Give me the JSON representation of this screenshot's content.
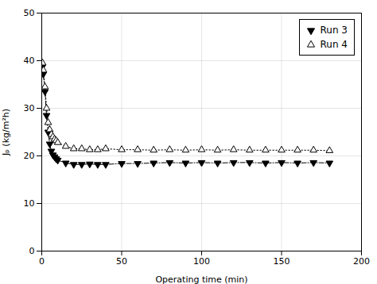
{
  "chart_data": {
    "type": "line",
    "xlabel": "Operating time (min)",
    "ylabel": "Jₚ (kg/m²h)",
    "x": [
      0.5,
      1,
      2,
      3,
      4,
      5,
      6,
      7,
      8,
      9,
      10,
      15,
      20,
      25,
      30,
      35,
      40,
      50,
      60,
      70,
      80,
      90,
      100,
      110,
      120,
      130,
      140,
      150,
      160,
      170,
      180
    ],
    "series": [
      {
        "name": "Run 3",
        "color": "#000000",
        "marker": "triangle-down",
        "line_style": "dashdot",
        "values": [
          38.8,
          37.2,
          33.5,
          28.5,
          25.0,
          22.5,
          21.0,
          20.2,
          19.8,
          19.4,
          19.1,
          18.5,
          18.2,
          18.2,
          18.3,
          18.2,
          18.2,
          18.4,
          18.4,
          18.5,
          18.6,
          18.5,
          18.6,
          18.5,
          18.6,
          18.6,
          18.5,
          18.6,
          18.5,
          18.6,
          18.5
        ]
      },
      {
        "name": "Run 4",
        "color": "#000000",
        "marker": "triangle-up-open",
        "line_style": "dotted",
        "values": [
          39.5,
          38.0,
          34.5,
          30.0,
          27.0,
          25.5,
          24.5,
          24.0,
          23.5,
          23.2,
          22.8,
          22.0,
          21.5,
          21.5,
          21.3,
          21.3,
          21.5,
          21.3,
          21.3,
          21.2,
          21.3,
          21.2,
          21.3,
          21.2,
          21.3,
          21.2,
          21.2,
          21.2,
          21.2,
          21.2,
          21.1
        ]
      }
    ],
    "xlim": [
      0,
      200
    ],
    "ylim": [
      0,
      50
    ],
    "xticks": [
      0,
      50,
      100,
      150,
      200
    ],
    "yticks": [
      0,
      10,
      20,
      30,
      40,
      50
    ],
    "grid": true,
    "legend": "upper right"
  }
}
